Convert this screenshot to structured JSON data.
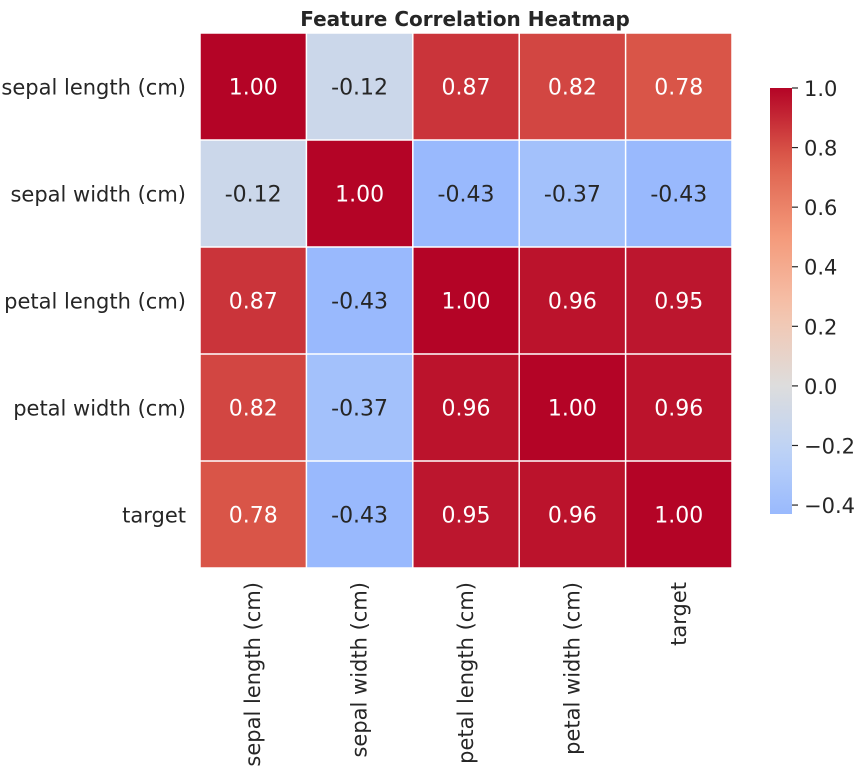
{
  "chart_data": {
    "type": "heatmap",
    "title": "Feature Correlation Heatmap",
    "rows": [
      "sepal length (cm)",
      "sepal width (cm)",
      "petal length (cm)",
      "petal width (cm)",
      "target"
    ],
    "columns": [
      "sepal length (cm)",
      "sepal width (cm)",
      "petal length (cm)",
      "petal width (cm)",
      "target"
    ],
    "values": [
      [
        1.0,
        -0.12,
        0.87,
        0.82,
        0.78
      ],
      [
        -0.12,
        1.0,
        -0.43,
        -0.37,
        -0.43
      ],
      [
        0.87,
        -0.43,
        1.0,
        0.96,
        0.95
      ],
      [
        0.82,
        -0.37,
        0.96,
        1.0,
        0.96
      ],
      [
        0.78,
        -0.43,
        0.95,
        0.96,
        1.0
      ]
    ],
    "value_format": "0.00",
    "colormap": "coolwarm",
    "color_range": [
      -0.43,
      1.0
    ],
    "colorbar_ticks": [
      1.0,
      0.8,
      0.6,
      0.4,
      0.2,
      0.0,
      -0.2,
      -0.4
    ],
    "colorbar_tick_labels": [
      "1.0",
      "0.8",
      "0.6",
      "0.4",
      "0.2",
      "0.0",
      "−0.2",
      "−0.4"
    ],
    "colors": {
      "cell_border": "#ffffff",
      "text_dark": "#262626",
      "text_light": "#ffffff"
    },
    "grid": false,
    "colorbar_position": "right"
  }
}
